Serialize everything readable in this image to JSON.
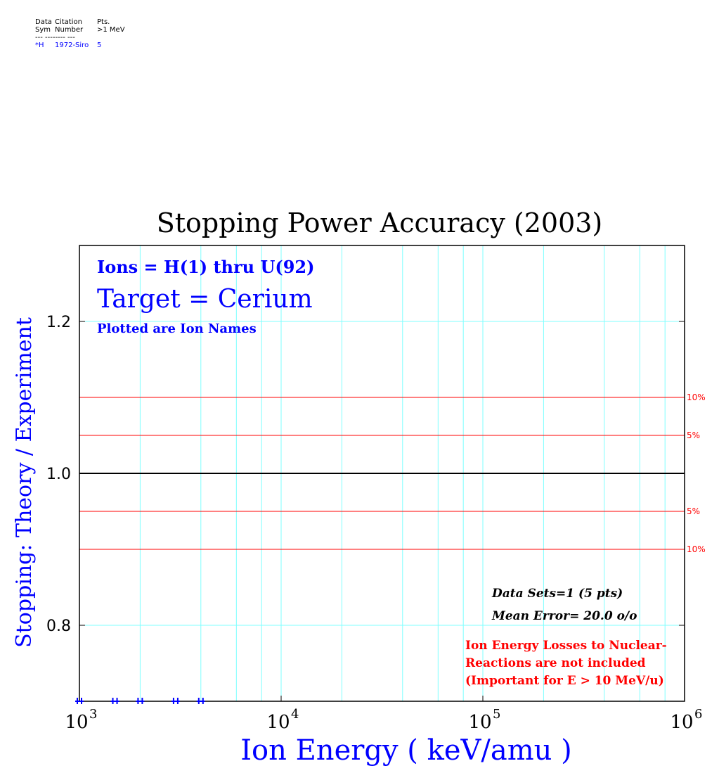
{
  "legend": {
    "header_line1": [
      "Data",
      "Citation",
      "Pts."
    ],
    "header_line2": [
      "Sym",
      "Number",
      ">1 MeV"
    ],
    "divider": "--- -------- ---",
    "entries": [
      {
        "sym": "*H",
        "citation": "1972-Siro",
        "pts": "5"
      }
    ]
  },
  "chart_data": {
    "type": "scatter",
    "title": "Stopping Power Accuracy (2003)",
    "xlabel": "Ion Energy ( keV/amu )",
    "ylabel": "Stopping: Theory / Experiment",
    "x_scale": "log",
    "xlim": [
      1000,
      1000000
    ],
    "ylim": [
      0.7,
      1.3
    ],
    "x_ticks": [
      {
        "base": "10",
        "exp": "3",
        "value": 1000
      },
      {
        "base": "10",
        "exp": "4",
        "value": 10000
      },
      {
        "base": "10",
        "exp": "5",
        "value": 100000
      },
      {
        "base": "10",
        "exp": "6",
        "value": 1000000
      }
    ],
    "y_ticks": [
      {
        "label": "0.8",
        "value": 0.8
      },
      {
        "label": "1.0",
        "value": 1.0
      },
      {
        "label": "1.2",
        "value": 1.2
      }
    ],
    "grid": true,
    "reference_line": 1.0,
    "error_bands": [
      {
        "label": "10%",
        "value": 1.1
      },
      {
        "label": "5%",
        "value": 1.05
      },
      {
        "label": "5%",
        "value": 0.95
      },
      {
        "label": "10%",
        "value": 0.9
      }
    ],
    "annotations": {
      "ions": "Ions = H(1) thru U(92)",
      "target": "Target = Cerium",
      "plotted": "Plotted are Ion Names",
      "data_sets": "Data Sets=1 (5 pts)",
      "mean_error": "Mean Error= 20.0 o/o",
      "nuclear_note": [
        "Ion Energy Losses to Nuclear-",
        "Reactions are not included",
        "(Important for E > 10 MeV/u)"
      ]
    },
    "series": [
      {
        "name": "H",
        "x": [
          1000,
          1500,
          2000,
          3000,
          4000
        ]
      }
    ],
    "colors": {
      "grid": "#7fffff",
      "band": "#ff0000",
      "text_blue": "#0000ff",
      "text_red": "#ff0000",
      "axis": "#000000"
    }
  }
}
